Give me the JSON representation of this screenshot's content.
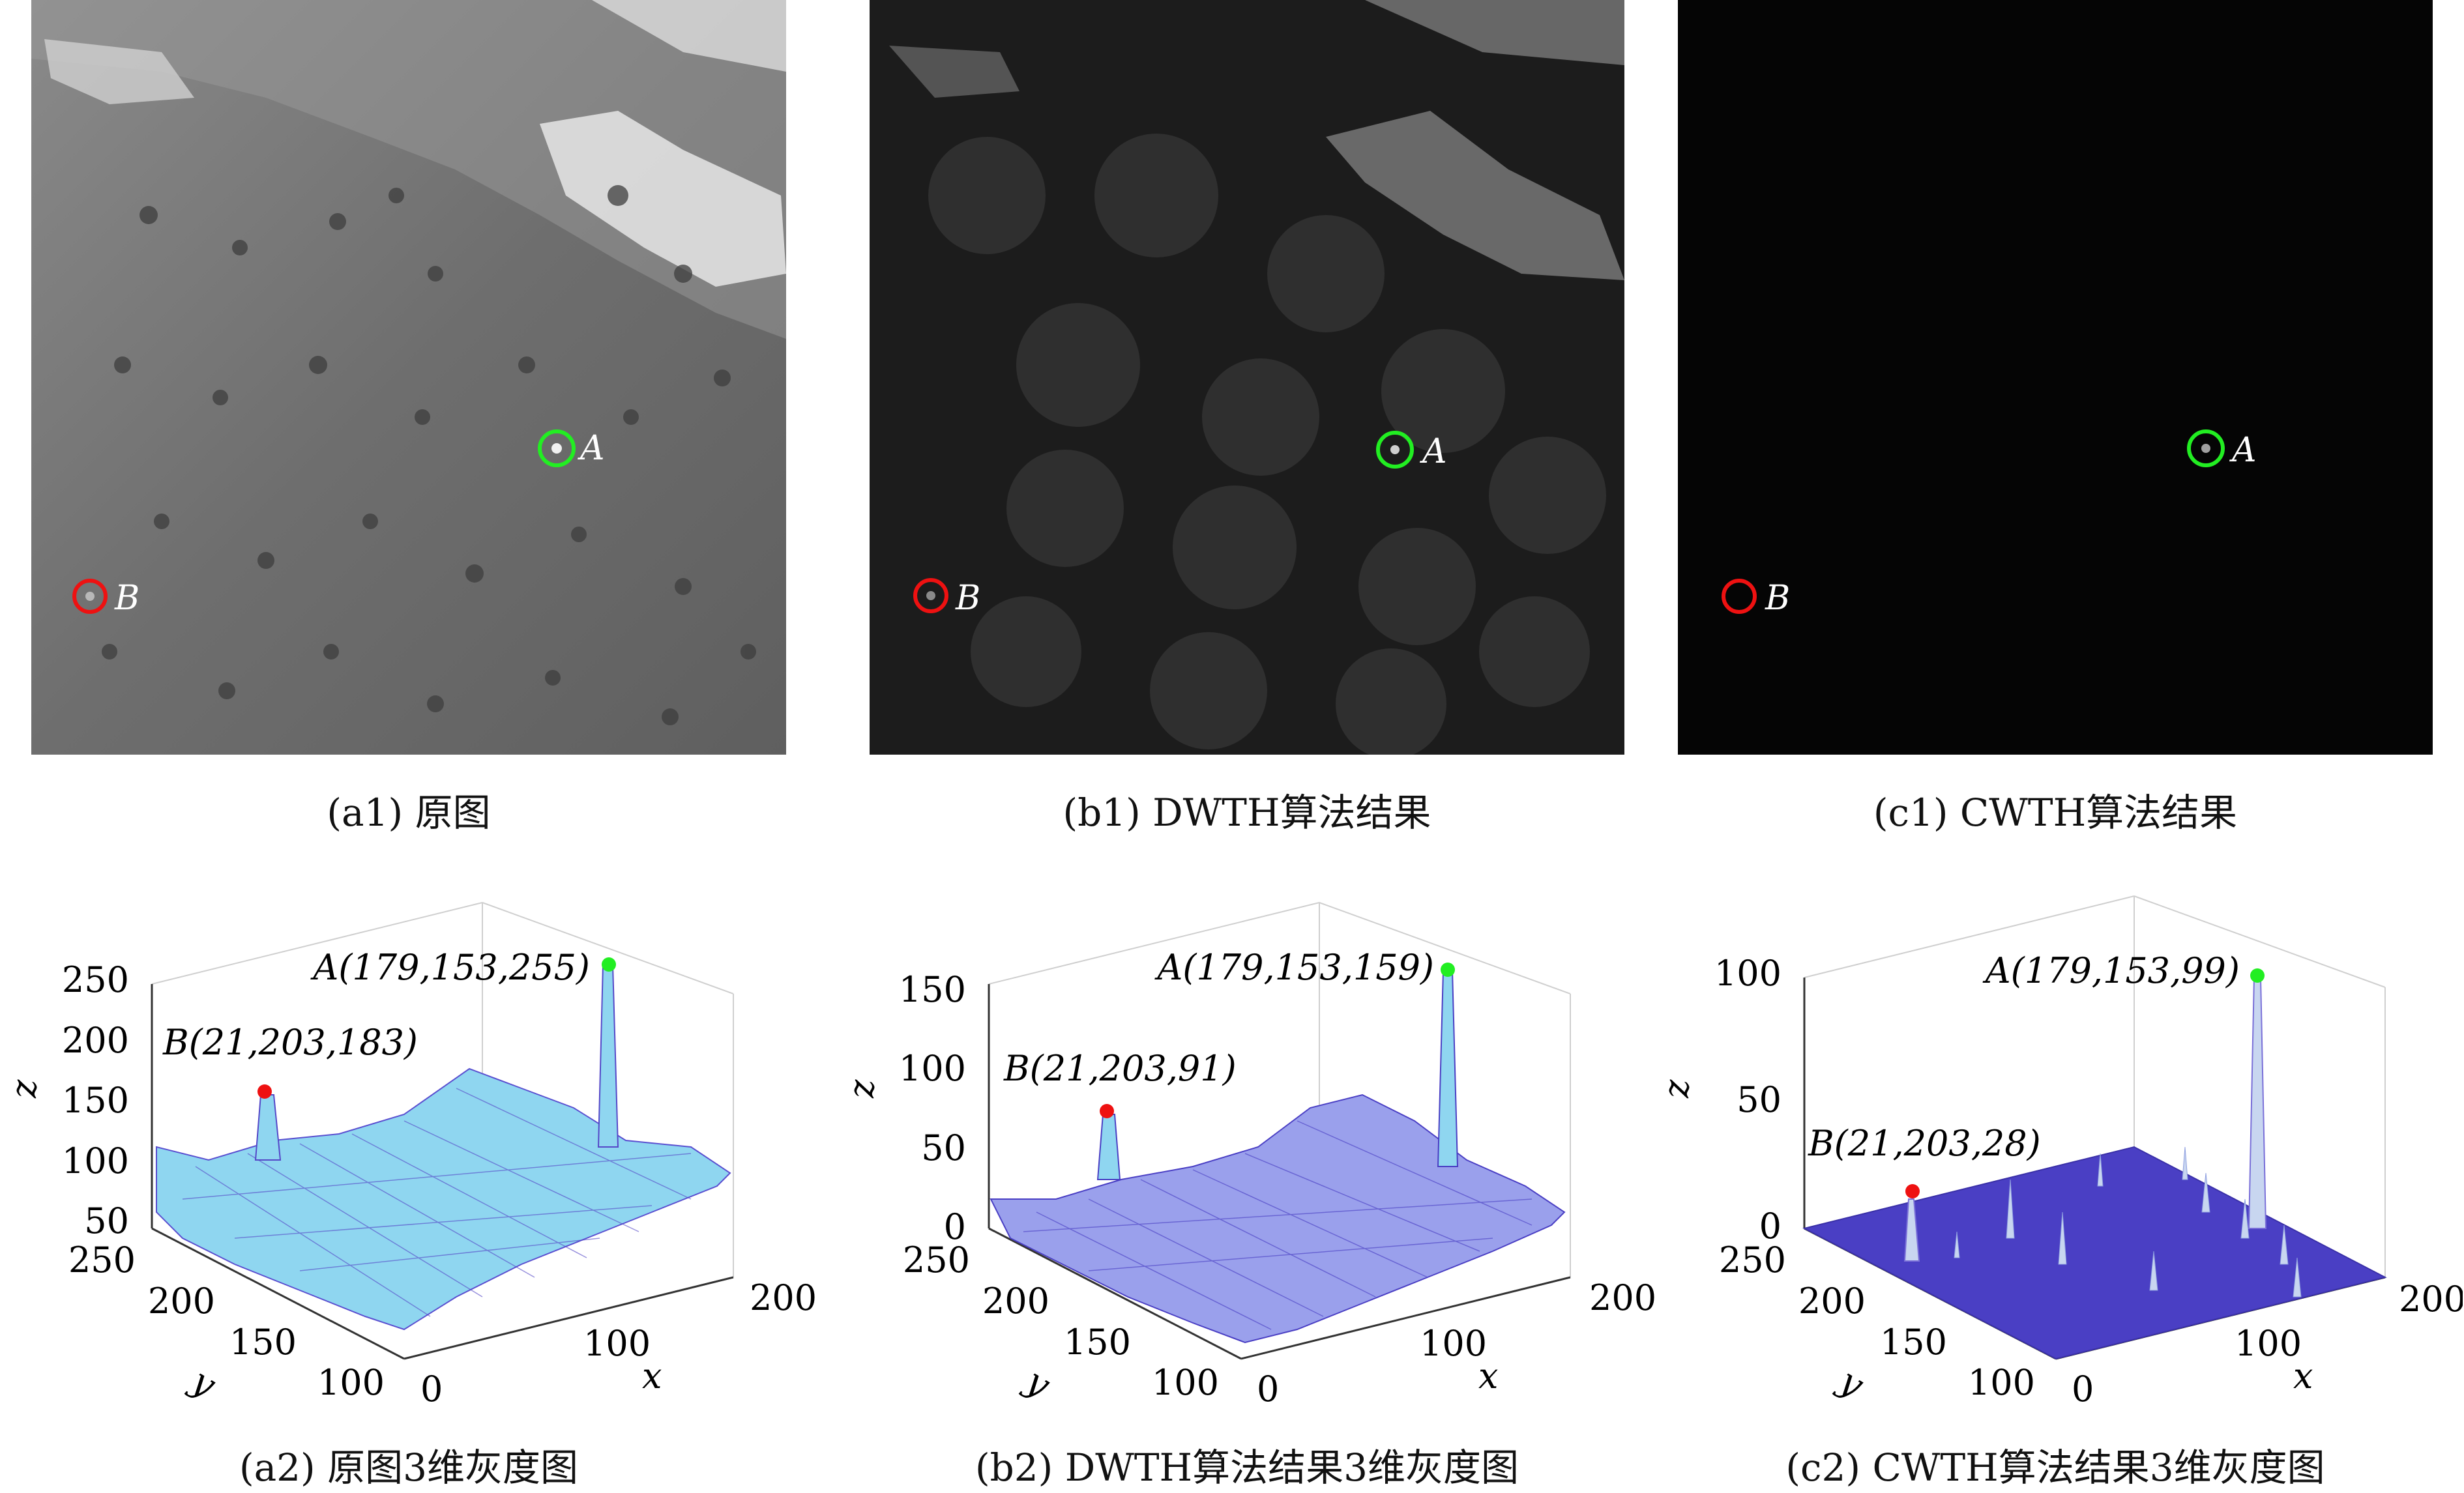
{
  "figure": {
    "panels_top": [
      {
        "id": "a1",
        "caption": "(a1) 原图",
        "bg": "#6f6f6f",
        "marker_A": "A",
        "marker_B": "B"
      },
      {
        "id": "b1",
        "caption": "(b1) DWTH算法结果",
        "bg": "#1c1c1c",
        "marker_A": "A",
        "marker_B": "B"
      },
      {
        "id": "c1",
        "caption": "(c1) CWTH算法结果",
        "bg": "#050505",
        "marker_A": "A",
        "marker_B": "B"
      }
    ],
    "panels_bottom": [
      {
        "id": "a2",
        "caption": "(a2) 原图3维灰度图",
        "z_ticks": [
          "250",
          "200",
          "150",
          "100",
          "50"
        ],
        "y_ticks": [
          "250",
          "200",
          "150",
          "100"
        ],
        "x_ticks": [
          "0",
          "100",
          "200"
        ],
        "z_label": "z",
        "y_label": "y",
        "x_label": "x",
        "label_A": "A(179,153,255)",
        "label_B": "B(21,203,183)"
      },
      {
        "id": "b2",
        "caption": "(b2) DWTH算法结果3维灰度图",
        "z_ticks": [
          "150",
          "100",
          "50",
          "0"
        ],
        "y_ticks": [
          "250",
          "200",
          "150",
          "100"
        ],
        "x_ticks": [
          "0",
          "100",
          "200"
        ],
        "z_label": "z",
        "y_label": "y",
        "x_label": "x",
        "label_A": "A(179,153,159)",
        "label_B": "B(21,203,91)"
      },
      {
        "id": "c2",
        "caption": "(c2) CWTH算法结果3维灰度图",
        "z_ticks": [
          "100",
          "50",
          "0"
        ],
        "y_ticks": [
          "250",
          "200",
          "150",
          "100"
        ],
        "x_ticks": [
          "0",
          "100",
          "200"
        ],
        "z_label": "z",
        "y_label": "y",
        "x_label": "x",
        "label_A": "A(179,153,99)",
        "label_B": "B(21,203,28)"
      }
    ],
    "colors": {
      "marker_A": "#22ee22",
      "marker_B": "#ee1111",
      "surface_light": "#8fd6f0",
      "surface_dark": "#5548c8",
      "flat_surface": "#4a3fc4"
    }
  }
}
